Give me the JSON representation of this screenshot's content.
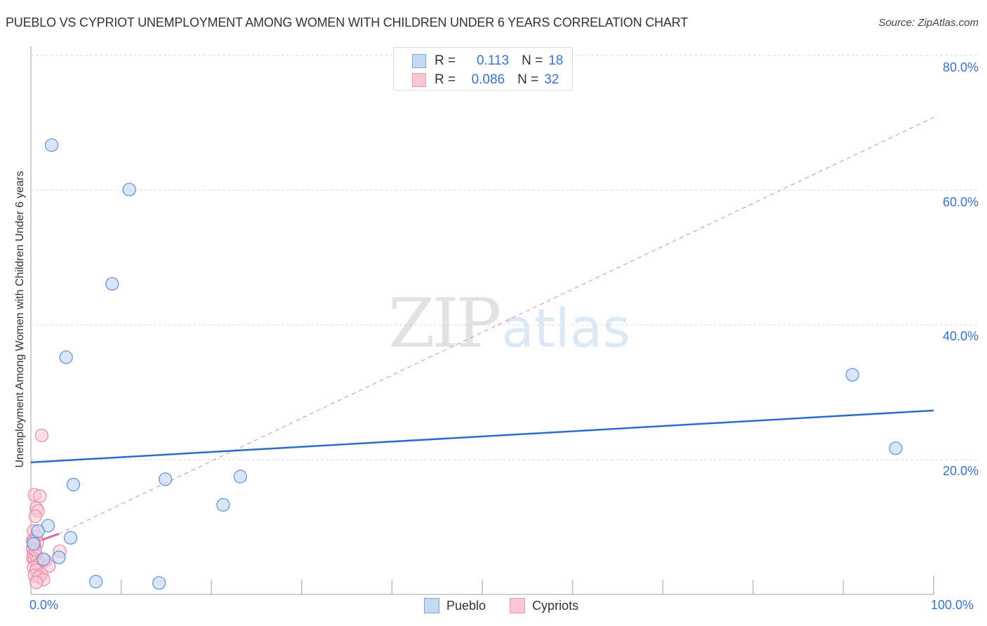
{
  "header": {
    "title": "PUEBLO VS CYPRIOT UNEMPLOYMENT AMONG WOMEN WITH CHILDREN UNDER 6 YEARS CORRELATION CHART",
    "source": "Source: ZipAtlas.com"
  },
  "watermark": {
    "zip": "ZIP",
    "atlas": "atlas"
  },
  "legend_top": {
    "rows": [
      {
        "series": "Pueblo",
        "r_label": "R =",
        "r_value": "0.113",
        "n_label": "N =",
        "n_value": "18"
      },
      {
        "series": "Cypriots",
        "r_label": "R =",
        "r_value": "0.086",
        "n_label": "N =",
        "n_value": "32"
      }
    ]
  },
  "legend_bottom": {
    "items": [
      {
        "label": "Pueblo"
      },
      {
        "label": "Cypriots"
      }
    ]
  },
  "axes": {
    "y_ticks": [
      "80.0%",
      "60.0%",
      "40.0%",
      "20.0%"
    ],
    "x_ticks": [
      "0.0%",
      "100.0%"
    ],
    "ylabel": "Unemployment Among Women with Children Under 6 years"
  },
  "colors": {
    "pueblo_fill": "#c5d9f5",
    "pueblo_stroke": "#5b8fd9",
    "pueblo_line": "#2d6cc9",
    "cypriot_fill": "#f9c6d4",
    "cypriot_stroke": "#e888a6",
    "cypriot_line": "#e0668e",
    "axis_text": "#3a72c8"
  },
  "chart_data": {
    "type": "scatter",
    "title": "PUEBLO VS CYPRIOT UNEMPLOYMENT AMONG WOMEN WITH CHILDREN UNDER 6 YEARS CORRELATION CHART",
    "xlabel": "",
    "ylabel": "Unemployment Among Women with Children Under 6 years",
    "xlim": [
      0,
      100
    ],
    "ylim": [
      0,
      82
    ],
    "x_tick_labels": [
      "0.0%",
      "100.0%"
    ],
    "y_tick_labels": [
      "20.0%",
      "40.0%",
      "60.0%",
      "80.0%"
    ],
    "grid": "horizontal dashed",
    "legend_position": "top-center and bottom-center",
    "series": [
      {
        "name": "Pueblo",
        "R": 0.113,
        "N": 18,
        "points": [
          [
            2.3,
            66.7
          ],
          [
            10.9,
            60.1
          ],
          [
            9.0,
            46.1
          ],
          [
            3.9,
            35.2
          ],
          [
            91.0,
            32.6
          ],
          [
            95.8,
            21.7
          ],
          [
            4.7,
            16.3
          ],
          [
            14.9,
            17.1
          ],
          [
            23.2,
            17.5
          ],
          [
            21.3,
            13.3
          ],
          [
            1.9,
            10.2
          ],
          [
            0.8,
            9.4
          ],
          [
            4.4,
            8.4
          ],
          [
            0.3,
            7.5
          ],
          [
            3.1,
            5.5
          ],
          [
            1.4,
            5.2
          ],
          [
            7.2,
            1.9
          ],
          [
            14.2,
            1.7
          ]
        ],
        "trendline": {
          "x": [
            0,
            100
          ],
          "y": [
            19.6,
            27.3
          ],
          "style": "solid"
        }
      },
      {
        "name": "Cypriots",
        "R": 0.086,
        "N": 32,
        "points": [
          [
            1.2,
            23.6
          ],
          [
            0.4,
            14.8
          ],
          [
            1.0,
            14.6
          ],
          [
            0.6,
            12.8
          ],
          [
            0.8,
            12.4
          ],
          [
            0.5,
            11.6
          ],
          [
            0.3,
            9.4
          ],
          [
            0.6,
            8.6
          ],
          [
            0.2,
            8.0
          ],
          [
            0.7,
            7.6
          ],
          [
            0.4,
            7.2
          ],
          [
            0.2,
            6.8
          ],
          [
            0.5,
            6.4
          ],
          [
            0.3,
            6.0
          ],
          [
            0.6,
            5.8
          ],
          [
            0.2,
            5.4
          ],
          [
            0.4,
            5.2
          ],
          [
            0.7,
            5.0
          ],
          [
            3.2,
            6.4
          ],
          [
            1.6,
            5.0
          ],
          [
            1.0,
            4.6
          ],
          [
            0.8,
            4.4
          ],
          [
            2.0,
            4.2
          ],
          [
            0.3,
            4.0
          ],
          [
            0.6,
            3.6
          ],
          [
            1.2,
            3.0
          ],
          [
            0.4,
            2.8
          ],
          [
            0.9,
            2.6
          ],
          [
            1.4,
            2.2
          ],
          [
            0.6,
            1.8
          ],
          [
            0.3,
            7.8
          ],
          [
            0.5,
            6.6
          ]
        ],
        "trendline": {
          "x": [
            0,
            3.1
          ],
          "y": [
            7.5,
            9.0
          ],
          "style": "solid",
          "extension": {
            "x": [
              3.1,
              100
            ],
            "y": [
              9.0,
              70.8
            ],
            "style": "dashed"
          }
        }
      }
    ]
  }
}
